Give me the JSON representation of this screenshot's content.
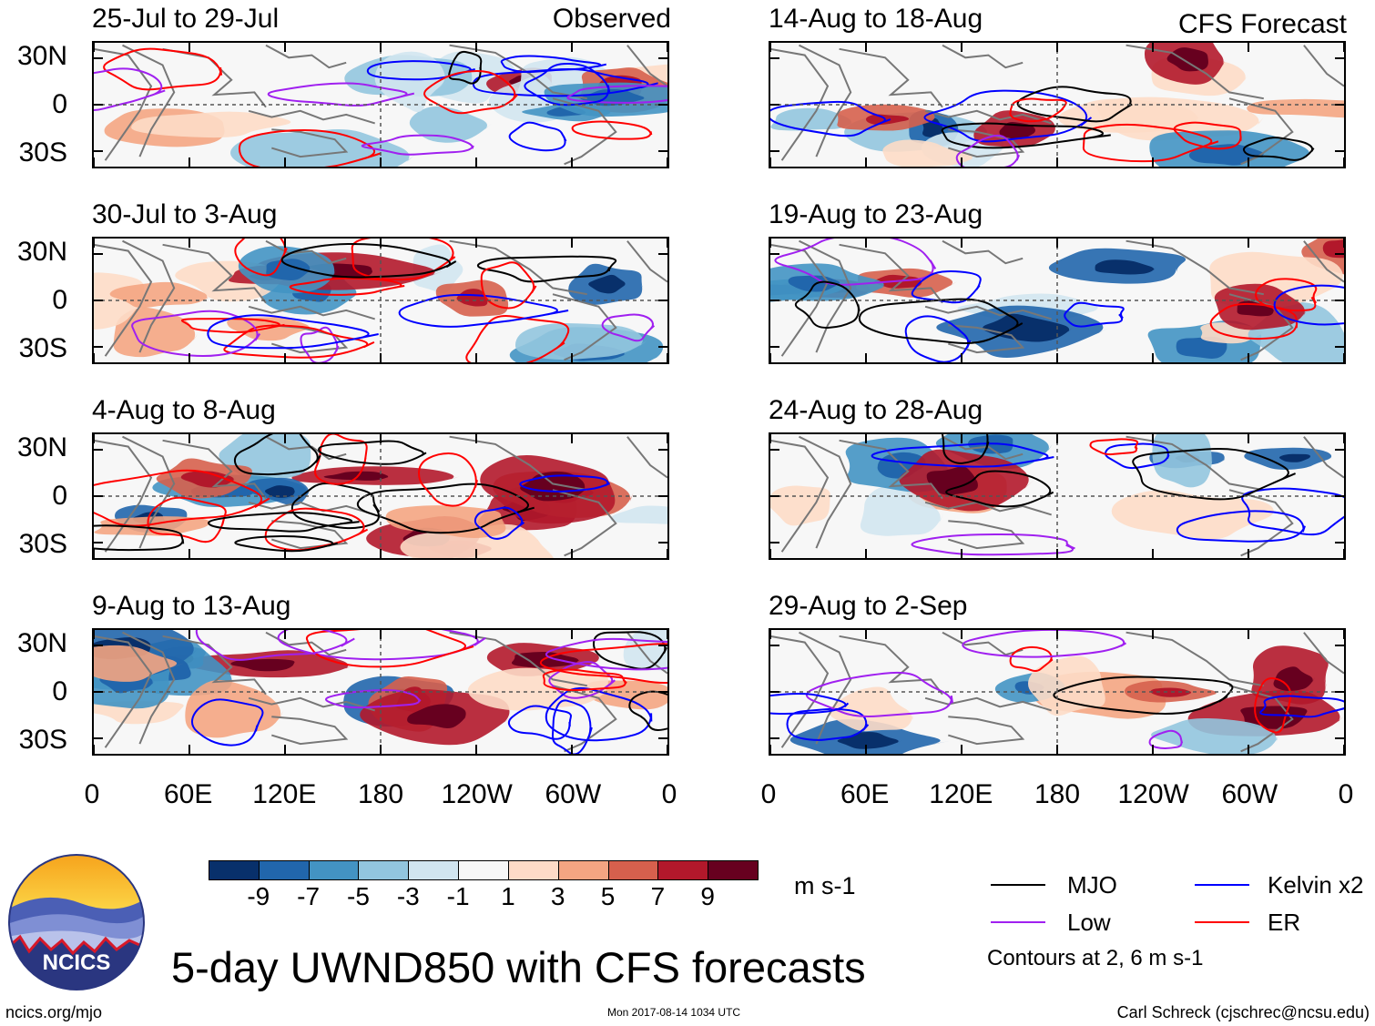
{
  "chart_data": {
    "type": "heatmap",
    "title": "5-day UWND850 with CFS forecasts",
    "variable": "UWND850",
    "units": "m s-1",
    "columns": [
      {
        "header": "Observed",
        "panels": [
          "25-Jul to 29-Jul",
          "30-Jul to 3-Aug",
          "4-Aug to 8-Aug",
          "9-Aug to 13-Aug"
        ]
      },
      {
        "header": "CFS Forecast",
        "panels": [
          "14-Aug to 18-Aug",
          "19-Aug to 23-Aug",
          "24-Aug to 28-Aug",
          "29-Aug to 2-Sep"
        ]
      }
    ],
    "y_ticks": [
      "30N",
      "0",
      "30S"
    ],
    "y_range": [
      "40S",
      "40N"
    ],
    "x_ticks": [
      "0",
      "60E",
      "120E",
      "180",
      "120W",
      "60W",
      "0"
    ],
    "x_range": [
      "0",
      "360"
    ],
    "colorbar": {
      "labels": [
        "-9",
        "-7",
        "-5",
        "-3",
        "-1",
        "1",
        "3",
        "5",
        "7",
        "9"
      ],
      "colors": [
        "#08306b",
        "#2166ac",
        "#4393c3",
        "#92c5de",
        "#d1e5f0",
        "#f7f7f7",
        "#fddbc7",
        "#f4a582",
        "#d6604d",
        "#b2182b",
        "#67001f"
      ]
    },
    "contours": [
      {
        "name": "MJO",
        "color": "#000000"
      },
      {
        "name": "Kelvin x2",
        "color": "#0000ff"
      },
      {
        "name": "Low",
        "color": "#a020f0"
      },
      {
        "name": "ER",
        "color": "#ff0000"
      }
    ],
    "contour_note": "Contours at 2, 6 m s-1"
  },
  "footer": {
    "logo_text": "NCICS",
    "site": "ncics.org/mjo",
    "timestamp": "Mon 2017-08-14 1034 UTC",
    "author": "Carl Schreck (cjschrec@ncsu.edu)"
  }
}
